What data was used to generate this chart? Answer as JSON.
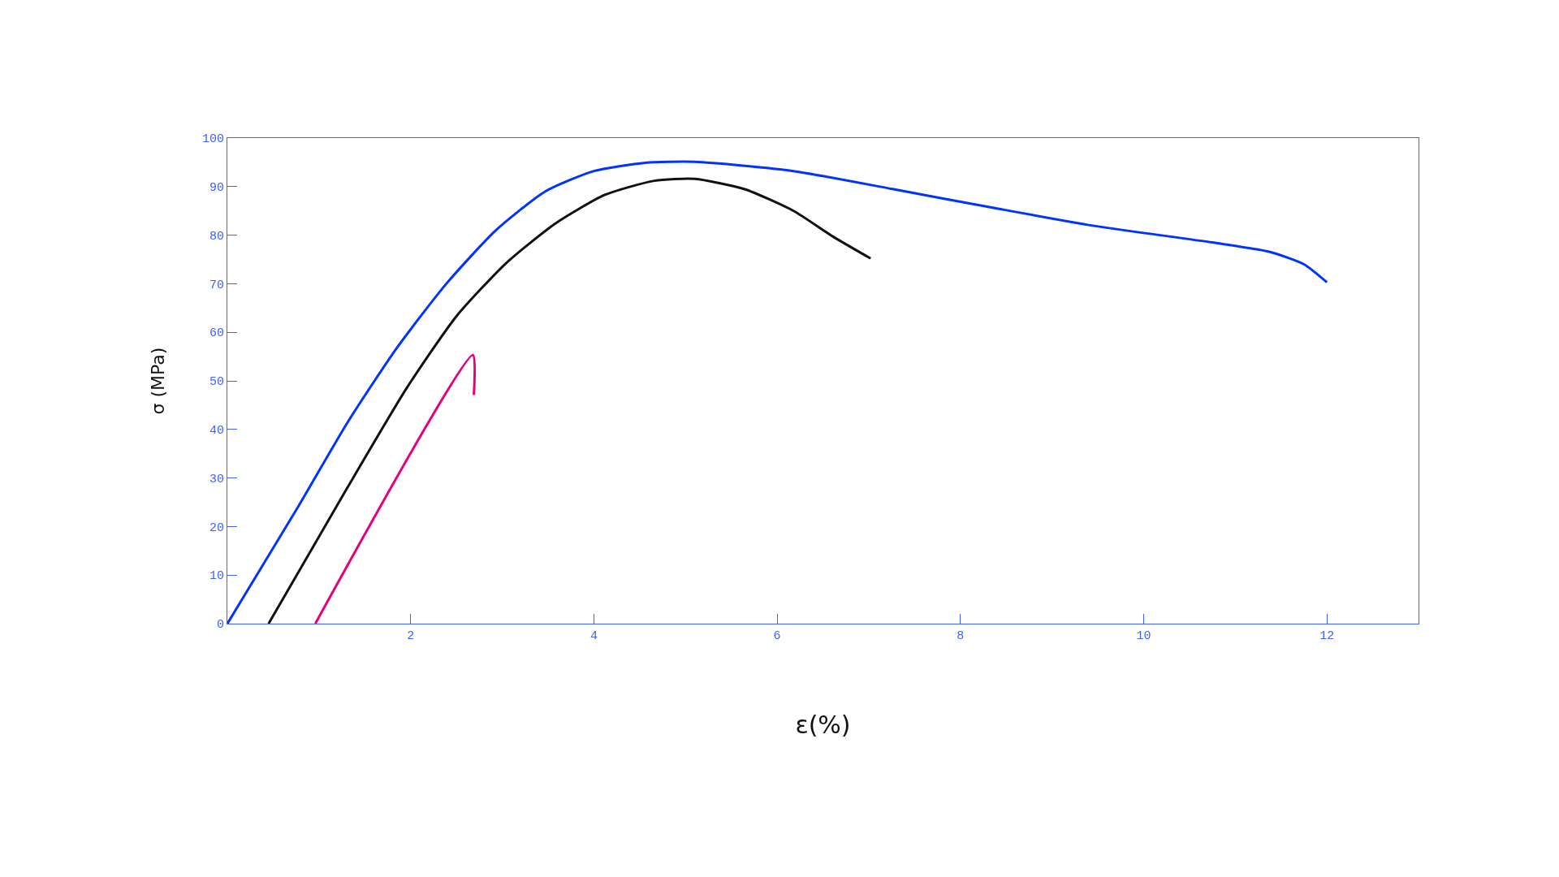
{
  "chart_data": {
    "type": "line",
    "xlabel": "ε(%)",
    "ylabel": "σ (MPa)",
    "xlim": [
      0,
      13
    ],
    "xticks": [
      2,
      4,
      6,
      8,
      10,
      12
    ],
    "ylim": [
      0,
      100
    ],
    "yticks": [
      0,
      10,
      20,
      30,
      40,
      50,
      60,
      70,
      80,
      90,
      100
    ],
    "marker": "none",
    "line_style": "solid",
    "series": [
      {
        "color": "#0033ff",
        "x": [
          0,
          0.77,
          1.31,
          1.85,
          2.39,
          2.93,
          3.47,
          4.0,
          4.56,
          5.1,
          6.18,
          7.26,
          8.34,
          9.43,
          10.75,
          11.37,
          11.75,
          12.0
        ],
        "values": [
          0,
          24,
          41.4,
          56.8,
          70,
          81,
          89,
          93.2,
          94.9,
          95.1,
          93.2,
          89.5,
          85.7,
          82,
          78.5,
          76.6,
          74,
          70.3
        ]
      },
      {
        "color": "#111111",
        "x": [
          0.45,
          1.31,
          1.96,
          2.5,
          3.04,
          3.58,
          4.12,
          4.66,
          5.1,
          5.64,
          6.18,
          6.61,
          7.02
        ],
        "values": [
          0,
          28,
          48.6,
          63.3,
          74.2,
          82.4,
          88.3,
          91.2,
          91.6,
          89.5,
          85,
          79.7,
          75.2
        ]
      },
      {
        "color": "#e6007e",
        "x": [
          0.96,
          2.68,
          2.69
        ],
        "values": [
          0,
          55.3,
          47.1
        ]
      }
    ]
  }
}
